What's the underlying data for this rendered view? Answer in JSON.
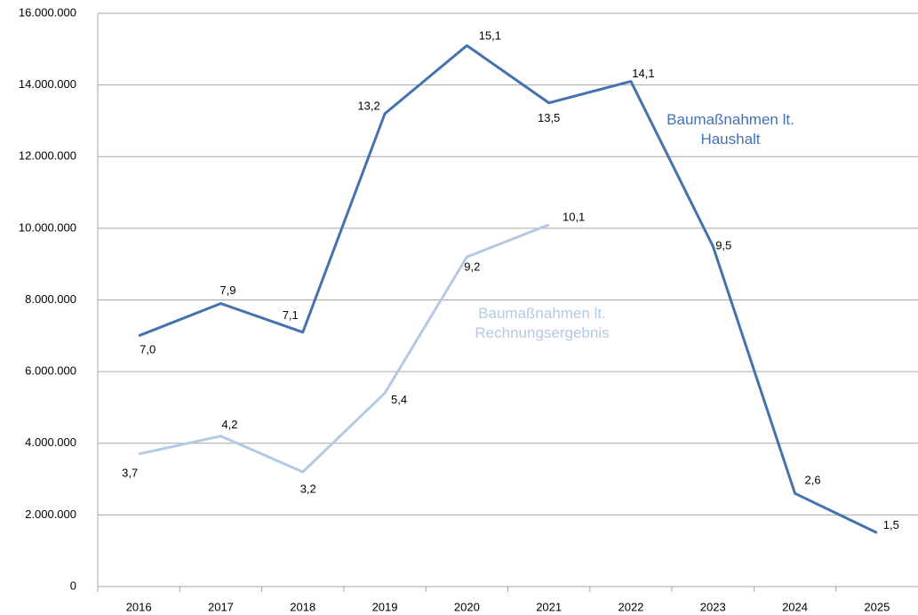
{
  "chart_data": {
    "type": "line",
    "categories": [
      "2016",
      "2017",
      "2018",
      "2019",
      "2020",
      "2021",
      "2022",
      "2023",
      "2024",
      "2025"
    ],
    "ylim": [
      0,
      16000000
    ],
    "yticks": [
      0,
      {
        "value": 2000000,
        "label": "2.000.000"
      },
      {
        "value": 4000000,
        "label": "4.000.000"
      },
      {
        "value": 6000000,
        "label": "6.000.000"
      },
      {
        "value": 8000000,
        "label": "8.000.000"
      },
      {
        "value": 10000000,
        "label": "10.000.000"
      },
      {
        "value": 12000000,
        "label": "12.000.000"
      },
      {
        "value": 14000000,
        "label": "14.000.000"
      },
      {
        "value": 16000000,
        "label": "16.000.000"
      }
    ],
    "grid": true,
    "series": [
      {
        "name": "Baumaßnahmen lt. Haushalt",
        "color": "#4472b0",
        "values": [
          7000000,
          7900000,
          7100000,
          13200000,
          15100000,
          13500000,
          14100000,
          9500000,
          2600000,
          1500000
        ],
        "value_labels": [
          "7,0",
          "7,9",
          "7,1",
          "13,2",
          "15,1",
          "13,5",
          "14,1",
          "9,5",
          "2,6",
          "1,5"
        ]
      },
      {
        "name": "Baumaßnahmen lt. Rechnungsergebnis",
        "color": "#b4c9e3",
        "values": [
          3700000,
          4200000,
          3200000,
          5400000,
          9200000,
          10100000,
          null,
          null,
          null,
          null
        ],
        "value_labels": [
          "3,7",
          "4,2",
          "3,2",
          "5,4",
          "9,2",
          "10,1",
          null,
          null,
          null,
          null
        ]
      }
    ]
  }
}
